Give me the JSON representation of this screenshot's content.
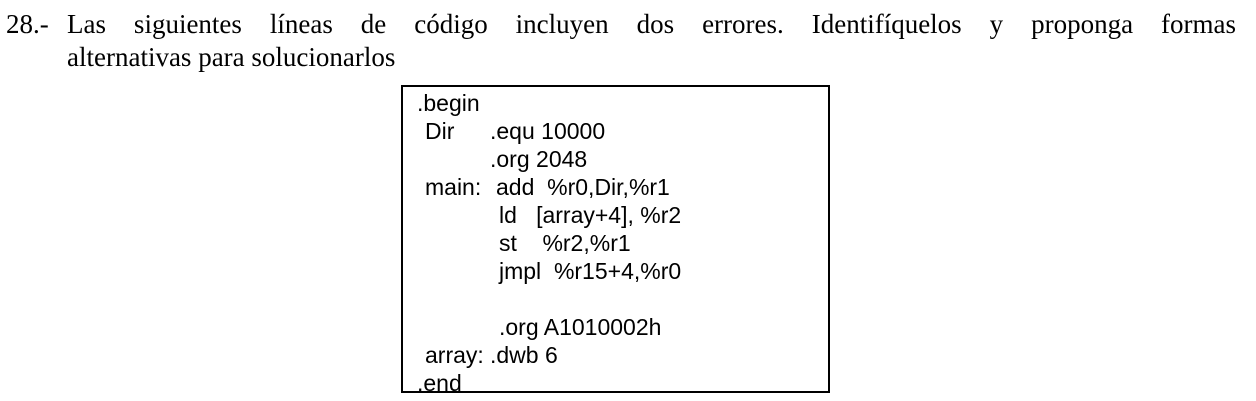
{
  "question": {
    "number": "28.-",
    "line1": "Las siguientes líneas de código incluyen dos errores.  Identifíquelos y proponga formas",
    "line2": "alternativas para solucionarlos"
  },
  "code": {
    "begin": ".begin",
    "dir_label": "Dir",
    "dir_directive": ".equ 10000",
    "org1": ".org 2048",
    "main_label": "main:",
    "add": "add  %r0,Dir,%r1",
    "ld": "ld   [array+4], %r2",
    "st": "st    %r2,%r1",
    "jmpl": "jmpl  %r15+4,%r0",
    "org2": ".org A1010002h",
    "array_label": "array:",
    "dwb": ".dwb 6",
    "end": ".end"
  }
}
